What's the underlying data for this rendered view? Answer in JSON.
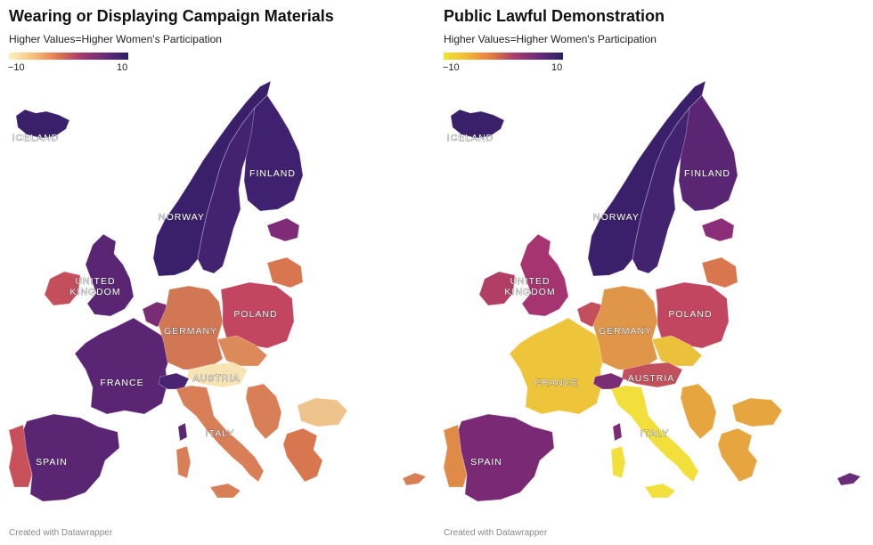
{
  "footer": "Created with Datawrapper",
  "maps": [
    {
      "title": "Wearing or Displaying Campaign Materials",
      "subtitle": "Higher Values=Higher Women's Participation",
      "legend": {
        "min_label": "−10",
        "max_label": "10",
        "stops": [
          "#fdf2c0",
          "#f4c27a",
          "#e47a52",
          "#a63a6e",
          "#6a2c78",
          "#2a1f68"
        ]
      },
      "labels": {
        "iceland": "ICELAND",
        "norway": "NORWAY",
        "finland": "FINLAND",
        "uk_line1": "UNITED",
        "uk_line2": "KINGDOM",
        "poland": "POLAND",
        "germany": "GERMANY",
        "france": "FRANCE",
        "austria": "AUSTRIA",
        "italy": "ITALY",
        "spain": "SPAIN"
      },
      "colors": {
        "iceland": "#3a1f6b",
        "norway": "#3a1f6b",
        "sweden": "#432370",
        "finland": "#3f2170",
        "baltics": "#7e2b78",
        "uk": "#5a2674",
        "ireland": "#c34e5c",
        "france": "#5a2674",
        "benelux": "#7a2c74",
        "germany": "#d27753",
        "poland": "#c2465f",
        "belarus": "#d8764f",
        "czechia": "#dd8a5a",
        "austria": "#f8e3b4",
        "switzerland": "#4a2373",
        "italy": "#d87f58",
        "spain": "#5a2674",
        "portugal": "#c8505a",
        "greece": "#d8764f",
        "bulgaria": "#efc48c",
        "balkans": "#d87f58",
        "cyprus": "#d87f58",
        "sardinia": "#d87f58",
        "corsica": "#5a2674"
      }
    },
    {
      "title": "Public Lawful Demonstration",
      "subtitle": "Higher Values=Higher Women's Participation",
      "legend": {
        "min_label": "−10",
        "max_label": "10",
        "stops": [
          "#f0e530",
          "#f2b735",
          "#e47a40",
          "#a63a6e",
          "#6a2c78",
          "#2a1f68"
        ]
      },
      "labels": {
        "iceland": "ICELAND",
        "norway": "NORWAY",
        "finland": "FINLAND",
        "uk_line1": "UNITED",
        "uk_line2": "KINGDOM",
        "poland": "POLAND",
        "germany": "GERMANY",
        "france": "FRANCE",
        "austria": "AUSTRIA",
        "italy": "ITALY",
        "spain": "SPAIN"
      },
      "colors": {
        "iceland": "#3a1f6b",
        "norway": "#3a1f6b",
        "sweden": "#432370",
        "finland": "#5a2674",
        "baltics": "#8b2d78",
        "uk": "#a53470",
        "ireland": "#b23e66",
        "france": "#eec43a",
        "benelux": "#c34e5c",
        "germany": "#e09648",
        "poland": "#c2465f",
        "belarus": "#d8764f",
        "czechia": "#ebc03b",
        "austria": "#c24f5c",
        "switzerland": "#7a2c74",
        "italy": "#f2df3c",
        "spain": "#7a2a75",
        "portugal": "#df8b47",
        "greece": "#e6a53e",
        "bulgaria": "#e6a53e",
        "balkans": "#e6a53e",
        "cyprus": "#6a2c78",
        "sardinia": "#f2df3c",
        "corsica": "#7a2c74"
      }
    }
  ]
}
